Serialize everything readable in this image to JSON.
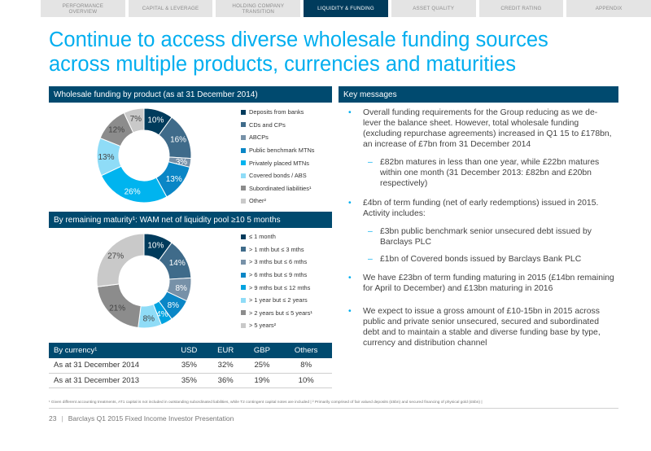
{
  "nav": {
    "tabs": [
      {
        "label": "PERFORMANCE\nOVERVIEW",
        "active": false
      },
      {
        "label": "CAPITAL & LEVERAGE",
        "active": false
      },
      {
        "label": "HOLDING COMPANY\nTRANSITION",
        "active": false
      },
      {
        "label": "LIQUIDITY & FUNDING",
        "active": true
      },
      {
        "label": "ASSET QUALITY",
        "active": false
      },
      {
        "label": "CREDIT RATING",
        "active": false
      },
      {
        "label": "APPENDIX",
        "active": false
      }
    ]
  },
  "title": "Continue to access diverse wholesale funding sources\nacross multiple products, currencies and maturities",
  "product_panel": {
    "header": "Wholesale funding by product (as at 31 December 2014)"
  },
  "maturity_panel": {
    "header": "By remaining maturity¹: WAM net of liquidity pool ≥10 5 months"
  },
  "key_messages": {
    "header": "Key messages",
    "items": [
      {
        "level": 1,
        "text": "Overall funding requirements for the Group reducing as we de-lever the balance sheet. However, total wholesale funding (excluding repurchase agreements) increased in Q1 15 to £178bn, an increase of £7bn from 31 December 2014"
      },
      {
        "level": 2,
        "text": "£82bn matures in less than one year, while £22bn matures within one month (31 December 2013: £82bn and £20bn respectively)"
      },
      {
        "level": 1,
        "text": "£4bn of term funding (net of early redemptions) issued in 2015. Activity includes:"
      },
      {
        "level": 2,
        "text": "£3bn public benchmark senior unsecured debt issued by Barclays PLC"
      },
      {
        "level": 2,
        "text": "£1bn of Covered bonds issued by Barclays Bank PLC"
      },
      {
        "level": 1,
        "text": "We have £23bn of term funding maturing in 2015 (£14bn remaining for April to December) and £13bn maturing in 2016"
      },
      {
        "level": 1,
        "text": "We expect to issue a gross amount of £10-15bn in 2015 across public and private senior unsecured, secured and subordinated debt and to maintain a stable and diverse funding base by type, currency and distribution channel"
      }
    ]
  },
  "currency_table": {
    "headers": [
      "By currency¹",
      "USD",
      "EUR",
      "GBP",
      "Others"
    ],
    "rows": [
      [
        "As at 31 December 2014",
        "35%",
        "32%",
        "25%",
        "8%"
      ],
      [
        "As at 31 December 2013",
        "35%",
        "36%",
        "19%",
        "10%"
      ]
    ]
  },
  "footnote": "¹ Given different accounting treatments, AT1 capital is not included in outstanding subordinated liabilities, while T2 contingent capital notes are included | ² Primarily comprised of fair valued deposits (£5bn) and secured financing of physical gold (£5bn) |",
  "footer": {
    "page": "23",
    "text": "Barclays Q1 2015 Fixed Income Investor Presentation"
  },
  "chart_data": [
    {
      "type": "pie",
      "title": "Wholesale funding by product (as at 31 December 2014)",
      "categories": [
        "Deposits from banks",
        "CDs and CPs",
        "ABCPs",
        "Public benchmark MTNs",
        "Privately placed MTNs",
        "Covered bonds / ABS",
        "Subordinated liabilities¹",
        "Other²"
      ],
      "values": [
        10,
        16,
        3,
        13,
        26,
        13,
        12,
        7
      ],
      "labels": [
        "10%",
        "16%",
        "3%",
        "13%",
        "26%",
        "13%",
        "12%",
        "7%"
      ],
      "colors": [
        "#003b5c",
        "#3f6b8a",
        "#7791a8",
        "#0a86c6",
        "#00b4ef",
        "#8fdcf7",
        "#8c8c8c",
        "#c9c9c9"
      ],
      "donut": true,
      "legend": "right"
    },
    {
      "type": "pie",
      "title": "By remaining maturity¹: WAM net of liquidity pool ≥10 5 months",
      "categories": [
        "≤ 1 month",
        "> 1 mth but ≤ 3 mths",
        "> 3 mths but ≤ 6 mths",
        "> 6 mths but ≤ 9 mths",
        "> 9 mths but ≤ 12 mths",
        "> 1 year but ≤ 2 years",
        "> 2 years but ≤ 5 years¹",
        "> 5 years²"
      ],
      "values": [
        10,
        14,
        8,
        8,
        4,
        8,
        21,
        27
      ],
      "labels": [
        "10%",
        "14%",
        "8%",
        "8%",
        "4%",
        "8%",
        "21%",
        "27%"
      ],
      "colors": [
        "#003b5c",
        "#3f6b8a",
        "#7791a8",
        "#0a86c6",
        "#00a3e0",
        "#8fdcf7",
        "#8c8c8c",
        "#c9c9c9"
      ],
      "donut": true,
      "legend": "right"
    }
  ]
}
